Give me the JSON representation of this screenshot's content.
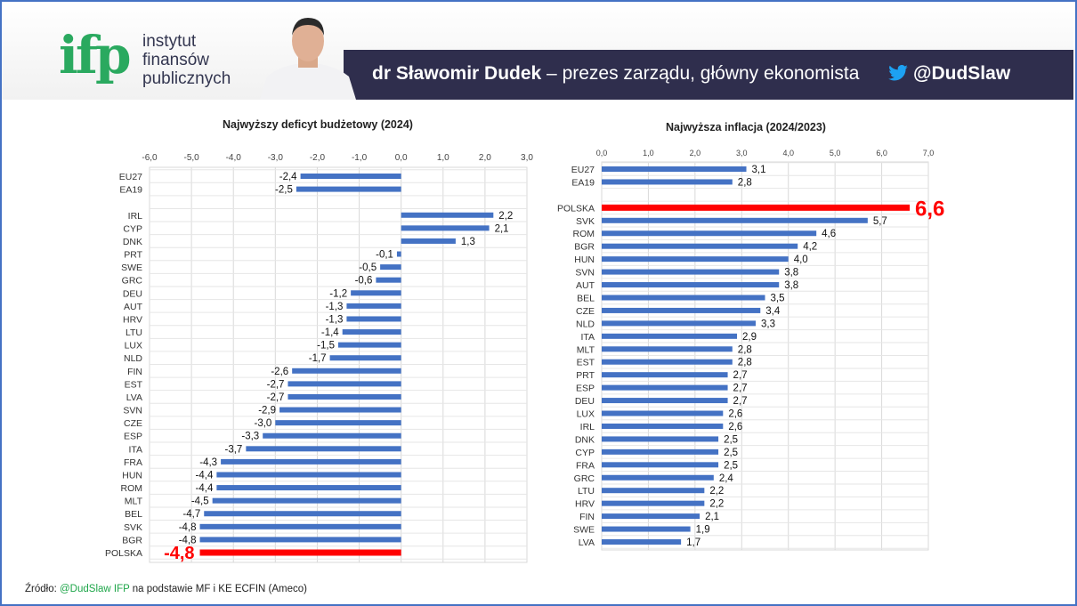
{
  "header": {
    "logo": "ifp",
    "logo_lines": [
      "instytut",
      "finansów",
      "publicznych"
    ],
    "name": "dr Sławomir Dudek",
    "role": " – prezes zarządu, główny ekonomista",
    "twitter": "@DudSlaw",
    "colors": {
      "brand_green": "#2aa95f",
      "band": "#2f2e4d"
    }
  },
  "footer": {
    "prefix": "Źródło: ",
    "handle": "@DudSlaw IFP",
    "suffix": " na podstawie MF i KE ECFIN (Ameco)"
  },
  "chart_data": [
    {
      "type": "bar",
      "orientation": "horizontal",
      "title": "Najwyższy deficyt budżetowy (2024)",
      "xlim": [
        -6,
        3
      ],
      "ticks": [
        "-6,0",
        "-5,0",
        "-4,0",
        "-3,0",
        "-2,0",
        "-1,0",
        "0,0",
        "1,0",
        "2,0",
        "3,0"
      ],
      "grid": true,
      "highlight": "POLSKA",
      "colors": {
        "bar": "#4472c4",
        "highlight": "#ff0000"
      },
      "categories": [
        "EU27",
        "EA19",
        "",
        "IRL",
        "CYP",
        "DNK",
        "PRT",
        "SWE",
        "GRC",
        "DEU",
        "AUT",
        "HRV",
        "LTU",
        "LUX",
        "NLD",
        "FIN",
        "EST",
        "LVA",
        "SVN",
        "CZE",
        "ESP",
        "ITA",
        "FRA",
        "HUN",
        "ROM",
        "MLT",
        "BEL",
        "SVK",
        "BGR",
        "POLSKA"
      ],
      "values": [
        -2.4,
        -2.5,
        null,
        2.2,
        2.1,
        1.3,
        -0.1,
        -0.5,
        -0.6,
        -1.2,
        -1.3,
        -1.3,
        -1.4,
        -1.5,
        -1.7,
        -2.6,
        -2.7,
        -2.7,
        -2.9,
        -3.0,
        -3.3,
        -3.7,
        -4.3,
        -4.4,
        -4.4,
        -4.5,
        -4.7,
        -4.8,
        -4.8,
        -4.8
      ]
    },
    {
      "type": "bar",
      "orientation": "horizontal",
      "title": "Najwyższa inflacja (2024/2023)",
      "xlim": [
        0,
        7
      ],
      "ticks": [
        "0,0",
        "1,0",
        "2,0",
        "3,0",
        "4,0",
        "5,0",
        "6,0",
        "7,0"
      ],
      "grid": true,
      "highlight": "POLSKA",
      "colors": {
        "bar": "#4472c4",
        "highlight": "#ff0000"
      },
      "categories": [
        "EU27",
        "EA19",
        "",
        "POLSKA",
        "SVK",
        "ROM",
        "BGR",
        "HUN",
        "SVN",
        "AUT",
        "BEL",
        "CZE",
        "NLD",
        "ITA",
        "MLT",
        "EST",
        "PRT",
        "ESP",
        "DEU",
        "LUX",
        "IRL",
        "DNK",
        "CYP",
        "FRA",
        "GRC",
        "LTU",
        "HRV",
        "FIN",
        "SWE",
        "LVA"
      ],
      "values": [
        3.1,
        2.8,
        null,
        6.6,
        5.7,
        4.6,
        4.2,
        4.0,
        3.8,
        3.8,
        3.5,
        3.4,
        3.3,
        2.9,
        2.8,
        2.8,
        2.7,
        2.7,
        2.7,
        2.6,
        2.6,
        2.5,
        2.5,
        2.5,
        2.4,
        2.2,
        2.2,
        2.1,
        1.9,
        1.7
      ]
    }
  ]
}
